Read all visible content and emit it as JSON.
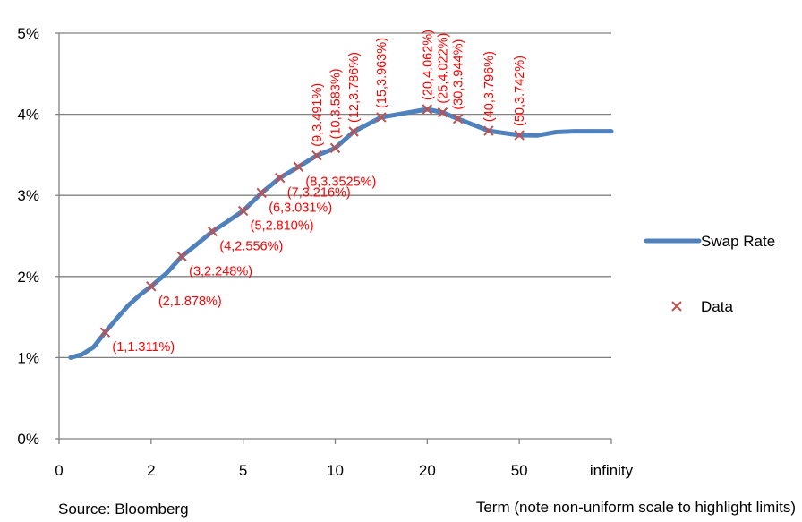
{
  "chart_data": {
    "type": "line",
    "title": "",
    "xlabel": "Term (note non-uniform scale to highlight limits)",
    "source": "Source: Bloomberg",
    "ylim": [
      0,
      0.05
    ],
    "y_ticks": [
      0,
      0.01,
      0.02,
      0.03,
      0.04,
      0.05
    ],
    "y_tick_labels": [
      "0%",
      "1%",
      "2%",
      "3%",
      "4%",
      "5%"
    ],
    "x_ticks": [
      0,
      2,
      5,
      10,
      20,
      50,
      "infinity"
    ],
    "x_tick_labels": [
      "0",
      "2",
      "5",
      "10",
      "20",
      "50",
      "infinity"
    ],
    "grid": "horizontal",
    "legend_position": "right",
    "colors": {
      "line": "#4f81bd",
      "marker": "#c0504d",
      "label": "#ff0000",
      "grid": "#808080"
    },
    "series": [
      {
        "name": "Swap Rate",
        "type": "line",
        "x": [
          0.25,
          0.5,
          0.75,
          1,
          1.25,
          1.5,
          1.75,
          2,
          2.5,
          3,
          3.5,
          4,
          4.5,
          5,
          6,
          7,
          8,
          9,
          10,
          12,
          15,
          20,
          25,
          30,
          40,
          50,
          60,
          70,
          80,
          90,
          100,
          "infinity"
        ],
        "y": [
          0.01,
          0.0104,
          0.0113,
          0.01311,
          0.0148,
          0.0164,
          0.0177,
          0.01878,
          0.0204,
          0.02248,
          0.024,
          0.02556,
          0.0268,
          0.0281,
          0.03031,
          0.03216,
          0.033525,
          0.03491,
          0.03583,
          0.03786,
          0.03963,
          0.04062,
          0.04022,
          0.03944,
          0.03796,
          0.03742,
          0.0374,
          0.0378,
          0.0379,
          0.0379,
          0.0379,
          0.0379
        ]
      },
      {
        "name": "Data",
        "type": "scatter",
        "points": [
          {
            "x": 1,
            "y": 0.01311,
            "label": "(1,1.311%)"
          },
          {
            "x": 2,
            "y": 0.01878,
            "label": "(2,1.878%)"
          },
          {
            "x": 3,
            "y": 0.02248,
            "label": "(3,2.248%)"
          },
          {
            "x": 4,
            "y": 0.02556,
            "label": "(4,2.556%)"
          },
          {
            "x": 5,
            "y": 0.0281,
            "label": "(5,2.810%)"
          },
          {
            "x": 6,
            "y": 0.03031,
            "label": "(6,3.031%)"
          },
          {
            "x": 7,
            "y": 0.03216,
            "label": "(7,3.216%)"
          },
          {
            "x": 8,
            "y": 0.033525,
            "label": "(8,3.3525%)"
          },
          {
            "x": 9,
            "y": 0.03491,
            "label": "(9,3.491%)"
          },
          {
            "x": 10,
            "y": 0.03583,
            "label": "(10,3.583%)"
          },
          {
            "x": 12,
            "y": 0.03786,
            "label": "(12,3.786%)"
          },
          {
            "x": 15,
            "y": 0.03963,
            "label": "(15,3.963%)"
          },
          {
            "x": 20,
            "y": 0.04062,
            "label": "(20,4.062%)"
          },
          {
            "x": 25,
            "y": 0.04022,
            "label": "(25,4.022%)"
          },
          {
            "x": 30,
            "y": 0.03944,
            "label": "(30,3.944%)"
          },
          {
            "x": 40,
            "y": 0.03796,
            "label": "(40,3.796%)"
          },
          {
            "x": 50,
            "y": 0.03742,
            "label": "(50,3.742%)"
          }
        ]
      }
    ]
  }
}
